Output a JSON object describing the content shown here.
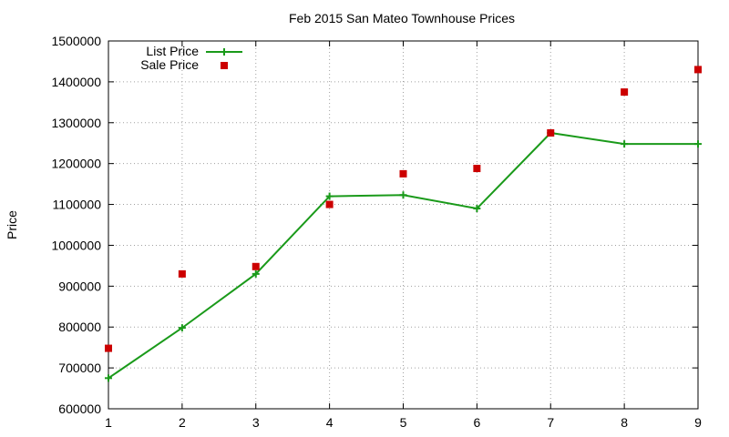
{
  "chart_data": {
    "type": "line",
    "title": "Feb 2015 San Mateo Townhouse Prices",
    "xlabel": "",
    "ylabel": "Price",
    "x": [
      1,
      2,
      3,
      4,
      5,
      6,
      7,
      8,
      9
    ],
    "xlim": [
      1,
      9
    ],
    "ylim": [
      600000,
      1500000
    ],
    "xticks": [
      "1",
      "2",
      "3",
      "4",
      "5",
      "6",
      "7",
      "8",
      "9"
    ],
    "yticks": [
      "600000",
      "700000",
      "800000",
      "900000",
      "1000000",
      "1100000",
      "1200000",
      "1300000",
      "1400000",
      "1500000"
    ],
    "grid": true,
    "legend_position": "top-left",
    "series": [
      {
        "name": "List Price",
        "style": "line-with-plus-markers",
        "color": "#1a9a1a",
        "values": [
          675000,
          798000,
          930000,
          1120000,
          1123000,
          1090000,
          1275000,
          1248000,
          1248000
        ]
      },
      {
        "name": "Sale Price",
        "style": "square-markers",
        "color": "#cc0000",
        "values": [
          748000,
          930000,
          948000,
          1100000,
          1175000,
          1188000,
          1275000,
          1375000,
          1430000
        ]
      }
    ]
  }
}
